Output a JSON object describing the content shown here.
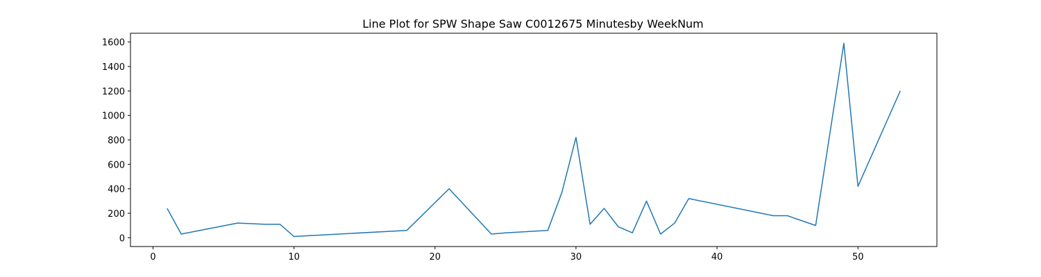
{
  "chart_data": {
    "type": "line",
    "title": "Line Plot for SPW Shape Saw C0012675 Minutesby WeekNum",
    "xlabel": "",
    "ylabel": "",
    "xlim": [
      -1.6,
      55.6
    ],
    "ylim": [
      -72,
      1672
    ],
    "xticks": [
      0,
      10,
      20,
      30,
      40,
      50
    ],
    "yticks": [
      0,
      200,
      400,
      600,
      800,
      1000,
      1200,
      1400,
      1600
    ],
    "grid": false,
    "series": [
      {
        "color": "#1f77b4",
        "x": [
          1,
          2,
          6,
          8,
          9,
          10,
          18,
          21,
          24,
          25,
          28,
          29,
          30,
          31,
          32,
          33,
          34,
          35,
          36,
          37,
          38,
          44,
          45,
          47,
          49,
          50,
          53
        ],
        "y": [
          240,
          30,
          120,
          110,
          110,
          10,
          60,
          400,
          30,
          40,
          60,
          370,
          820,
          110,
          240,
          90,
          40,
          300,
          30,
          120,
          320,
          180,
          180,
          100,
          1590,
          420,
          1200
        ]
      }
    ]
  }
}
